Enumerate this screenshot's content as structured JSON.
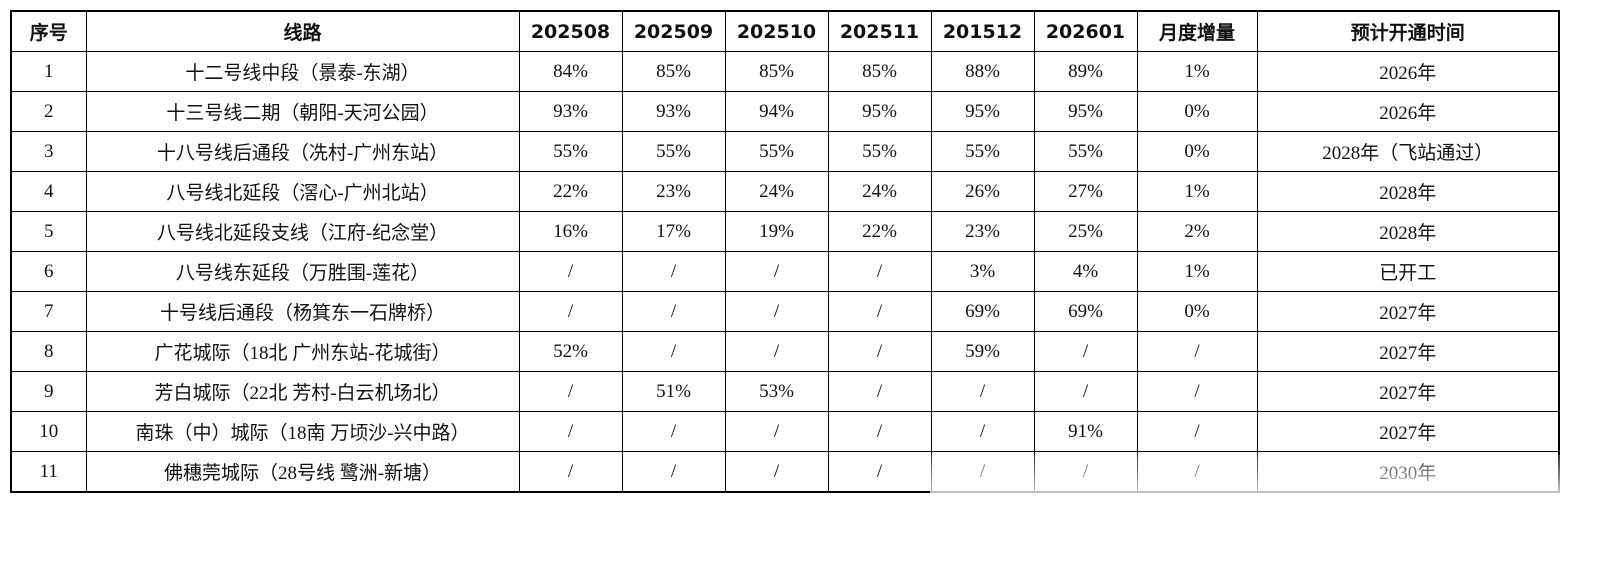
{
  "table": {
    "headers": [
      "序号",
      "线路",
      "202508",
      "202509",
      "202510",
      "202511",
      "201512",
      "202601",
      "月度增量",
      "预计开通时间"
    ],
    "rows": [
      [
        "1",
        "十二号线中段（景泰-东湖）",
        "84%",
        "85%",
        "85%",
        "85%",
        "88%",
        "89%",
        "1%",
        "2026年"
      ],
      [
        "2",
        "十三号线二期（朝阳-天河公园）",
        "93%",
        "93%",
        "94%",
        "95%",
        "95%",
        "95%",
        "0%",
        "2026年"
      ],
      [
        "3",
        "十八号线后通段（冼村-广州东站）",
        "55%",
        "55%",
        "55%",
        "55%",
        "55%",
        "55%",
        "0%",
        "2028年（飞站通过）"
      ],
      [
        "4",
        "八号线北延段（滘心-广州北站）",
        "22%",
        "23%",
        "24%",
        "24%",
        "26%",
        "27%",
        "1%",
        "2028年"
      ],
      [
        "5",
        "八号线北延段支线（江府-纪念堂）",
        "16%",
        "17%",
        "19%",
        "22%",
        "23%",
        "25%",
        "2%",
        "2028年"
      ],
      [
        "6",
        "八号线东延段（万胜围-莲花）",
        "/",
        "/",
        "/",
        "/",
        "3%",
        "4%",
        "1%",
        "已开工"
      ],
      [
        "7",
        "十号线后通段（杨箕东一石牌桥）",
        "/",
        "/",
        "/",
        "/",
        "69%",
        "69%",
        "0%",
        "2027年"
      ],
      [
        "8",
        "广花城际（18北 广州东站-花城街）",
        "52%",
        "/",
        "/",
        "/",
        "59%",
        "/",
        "/",
        "2027年"
      ],
      [
        "9",
        "芳白城际（22北 芳村-白云机场北）",
        "/",
        "51%",
        "53%",
        "/",
        "/",
        "/",
        "/",
        "2027年"
      ],
      [
        "10",
        "南珠（中）城际（18南 万顷沙-兴中路）",
        "/",
        "/",
        "/",
        "/",
        "/",
        "91%",
        "/",
        "2027年"
      ],
      [
        "11",
        "佛穗莞城际（28号线 鹭洲-新塘）",
        "/",
        "/",
        "/",
        "/",
        "/",
        "/",
        "/",
        "2030年"
      ]
    ]
  }
}
